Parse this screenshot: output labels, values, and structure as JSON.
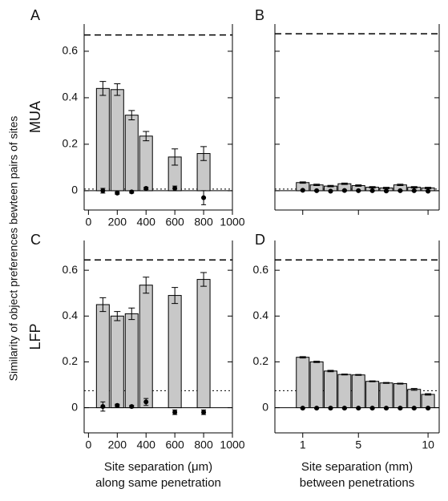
{
  "ylabel": "Similarity of object preferences bewteen pairs of sites",
  "chart_data": [
    {
      "type": "bar",
      "panel": "A",
      "row_label": "MUA",
      "x": [
        100,
        200,
        300,
        400,
        600,
        800
      ],
      "values": [
        0.44,
        0.435,
        0.325,
        0.235,
        0.145,
        0.16
      ],
      "errors": [
        0.03,
        0.025,
        0.02,
        0.02,
        0.035,
        0.03
      ],
      "control_values": [
        0.0,
        -0.01,
        -0.005,
        0.01,
        0.01,
        -0.03
      ],
      "control_errors": [
        0.01,
        0.005,
        0.005,
        0.005,
        0.01,
        0.03
      ],
      "ceiling": 0.67,
      "chance": 0.007,
      "xlim": [
        -30,
        1000
      ],
      "xticks": [
        0,
        200,
        400,
        600,
        800,
        1000
      ],
      "show_xtick_labels": true,
      "ylim": [
        -0.083,
        0.717
      ],
      "yticks": [
        0,
        0.2,
        0.4,
        0.6
      ],
      "show_ytick_labels": true,
      "color": "#c8c8c8"
    },
    {
      "type": "bar",
      "panel": "B",
      "x": [
        1,
        2,
        3,
        4,
        5,
        6,
        7,
        8,
        9,
        10
      ],
      "values": [
        0.035,
        0.025,
        0.02,
        0.03,
        0.022,
        0.015,
        0.012,
        0.025,
        0.015,
        0.012
      ],
      "errors": [
        0.003,
        0.003,
        0.003,
        0.003,
        0.003,
        0.003,
        0.003,
        0.003,
        0.003,
        0.003
      ],
      "control_values": [
        0.002,
        0,
        -0.002,
        0.001,
        0,
        0,
        -0.001,
        0,
        0,
        -0.002
      ],
      "control_errors": [
        0.002,
        0.002,
        0.002,
        0.002,
        0.002,
        0.002,
        0.002,
        0.002,
        0.002,
        0.002
      ],
      "ceiling": 0.675,
      "chance": 0.007,
      "xlim": [
        -1,
        10.8
      ],
      "xticks": [
        1,
        5,
        10
      ],
      "show_xtick_labels": false,
      "ylim": [
        -0.083,
        0.717
      ],
      "yticks": [
        0,
        0.2,
        0.4,
        0.6
      ],
      "show_ytick_labels": false,
      "color": "#c8c8c8"
    },
    {
      "type": "bar",
      "panel": "C",
      "row_label": "LFP",
      "x": [
        100,
        200,
        300,
        400,
        600,
        800
      ],
      "values": [
        0.45,
        0.4,
        0.41,
        0.535,
        0.49,
        0.56
      ],
      "errors": [
        0.03,
        0.02,
        0.025,
        0.035,
        0.035,
        0.03
      ],
      "control_values": [
        0.005,
        0.01,
        0.005,
        0.025,
        -0.02,
        -0.02
      ],
      "control_errors": [
        0.02,
        0.005,
        0.005,
        0.015,
        0.01,
        0.01
      ],
      "ceiling": 0.645,
      "chance": 0.074,
      "xlim": [
        -30,
        1000
      ],
      "xticks": [
        0,
        200,
        400,
        600,
        800,
        1000
      ],
      "show_xtick_labels": true,
      "ylim": [
        -0.11,
        0.73
      ],
      "yticks": [
        0,
        0.2,
        0.4,
        0.6
      ],
      "show_ytick_labels": true,
      "color": "#c8c8c8",
      "xlabel": [
        "Site separation (μm)",
        "along same penetration"
      ]
    },
    {
      "type": "bar",
      "panel": "D",
      "x": [
        1,
        2,
        3,
        4,
        5,
        6,
        7,
        8,
        9,
        10
      ],
      "values": [
        0.22,
        0.2,
        0.16,
        0.145,
        0.143,
        0.115,
        0.108,
        0.105,
        0.08,
        0.058
      ],
      "errors": [
        0.003,
        0.003,
        0.003,
        0.002,
        0.002,
        0.002,
        0.002,
        0.002,
        0.004,
        0.003
      ],
      "control_values": [
        -0.002,
        -0.002,
        -0.002,
        -0.002,
        -0.002,
        -0.002,
        -0.002,
        -0.002,
        -0.002,
        -0.002
      ],
      "control_errors": [
        0.002,
        0.002,
        0.002,
        0.002,
        0.002,
        0.002,
        0.002,
        0.002,
        0.002,
        0.002
      ],
      "ceiling": 0.645,
      "chance": 0.074,
      "xlim": [
        -1,
        10.8
      ],
      "xticks": [
        1,
        5,
        10
      ],
      "show_xtick_labels": true,
      "ylim": [
        -0.11,
        0.73
      ],
      "yticks": [
        0,
        0.2,
        0.4,
        0.6
      ],
      "show_ytick_labels": true,
      "color": "#c8c8c8",
      "xlabel": [
        "Site separation (mm)",
        "between penetrations"
      ]
    }
  ]
}
